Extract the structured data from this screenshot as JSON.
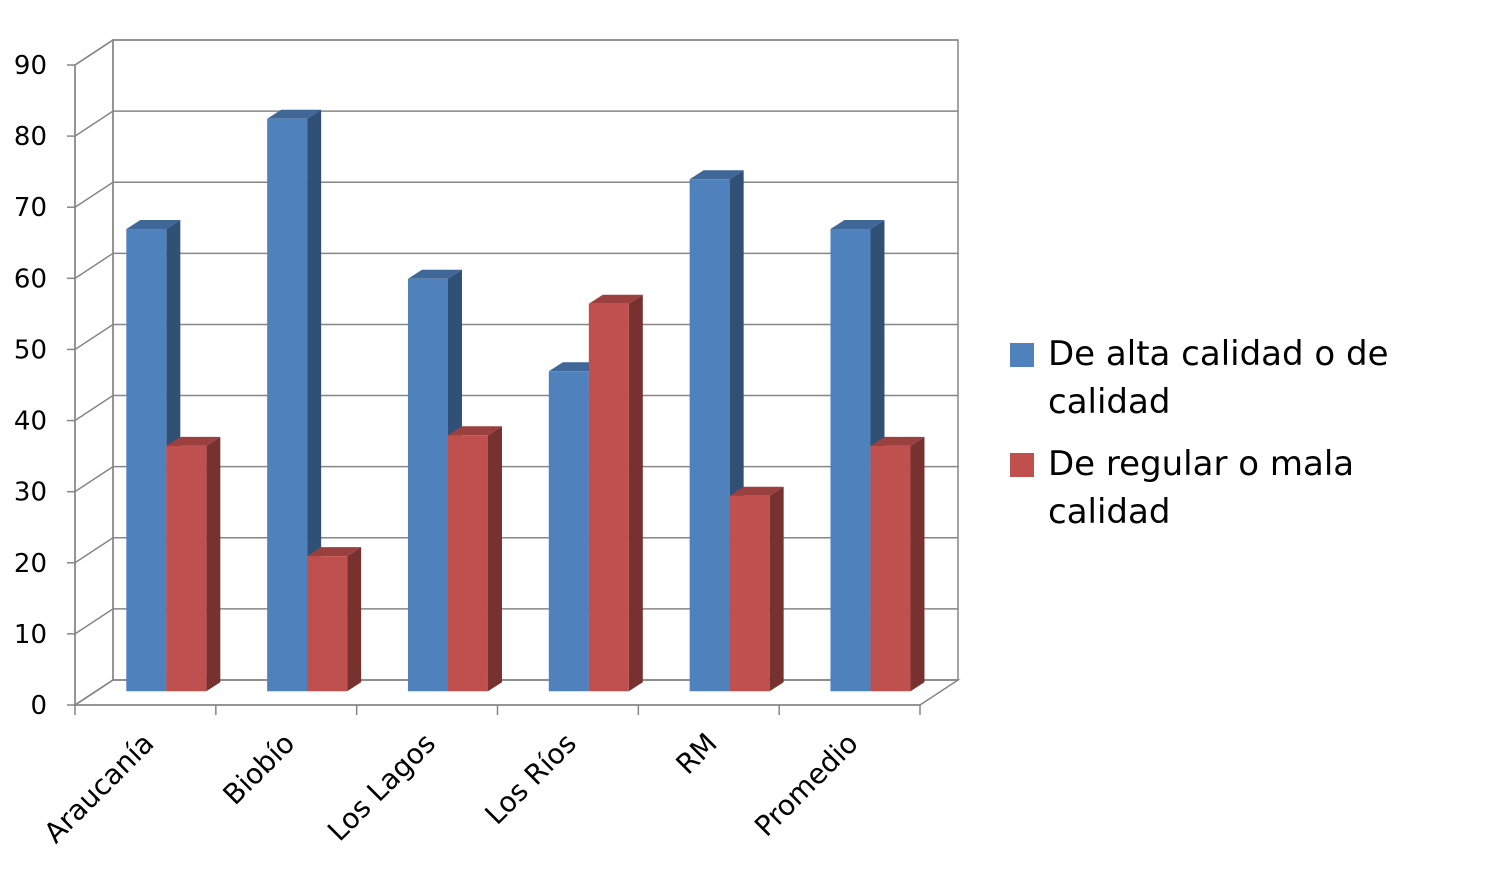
{
  "chart_data": {
    "type": "bar",
    "title": "",
    "xlabel": "",
    "ylabel": "",
    "categories": [
      "Araucanía",
      "Biobío",
      "Los Lagos",
      "Los Ríos",
      "RM",
      "Promedio"
    ],
    "series": [
      {
        "name": "De alta calidad o de calidad",
        "values": [
          65,
          80.5,
          58,
          45,
          72,
          65
        ],
        "color": "#4f81bd"
      },
      {
        "name": "De regular o mala calidad",
        "values": [
          34.5,
          19,
          36,
          54.5,
          27.5,
          34.5
        ],
        "color": "#c0504d"
      }
    ],
    "ylim": [
      0,
      90
    ],
    "yticks": [
      "0",
      "10",
      "20",
      "30",
      "40",
      "50",
      "60",
      "70",
      "80",
      "90"
    ],
    "grid": true,
    "legend_position": "right",
    "three_d": true
  }
}
